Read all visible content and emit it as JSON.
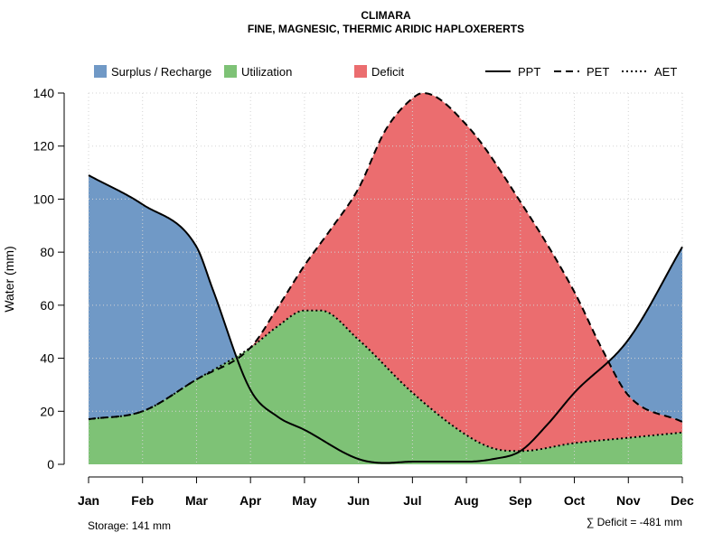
{
  "chart_data": {
    "type": "area",
    "title": "CLIMARA",
    "subtitle": "FINE, MAGNESIC, THERMIC ARIDIC HAPLOXERERTS",
    "ylabel": "Water (mm)",
    "xlabel": "",
    "ylim": [
      0,
      140
    ],
    "yticks": [
      0,
      20,
      40,
      60,
      80,
      100,
      120,
      140
    ],
    "categories": [
      "Jan",
      "Feb",
      "Mar",
      "Apr",
      "May",
      "Jun",
      "Jul",
      "Aug",
      "Sep",
      "Oct",
      "Nov",
      "Dec"
    ],
    "grid": true,
    "legend_position": "top",
    "series": [
      {
        "name": "PPT",
        "line_style": "solid",
        "x": [
          0,
          1,
          2,
          2.3,
          3,
          3.5,
          4,
          5,
          5.5,
          6,
          7,
          7.5,
          8,
          8.5,
          9,
          10,
          11
        ],
        "values": [
          109,
          98,
          82,
          66,
          28,
          18,
          13,
          2,
          0.5,
          1,
          1,
          2,
          5,
          15,
          27,
          47,
          82
        ]
      },
      {
        "name": "PET",
        "line_style": "dashed",
        "x": [
          0,
          1,
          2,
          3,
          3.5,
          4,
          4.5,
          5,
          5.5,
          6,
          6.2,
          7,
          8,
          9,
          9.5,
          10,
          11
        ],
        "values": [
          17,
          20,
          32,
          44,
          59,
          75,
          89,
          104,
          126,
          138,
          140,
          128,
          99,
          65,
          44,
          26,
          16
        ]
      },
      {
        "name": "AET",
        "line_style": "dotted",
        "x": [
          0,
          1,
          2,
          3,
          3.5,
          4,
          4.3,
          5,
          6,
          7,
          7.5,
          8,
          9,
          10,
          11
        ],
        "values": [
          17,
          20,
          32,
          44,
          52,
          58,
          58,
          47,
          27,
          11,
          6,
          5,
          8,
          10,
          12
        ]
      }
    ],
    "legend": {
      "fills": [
        {
          "label": "Surplus / Recharge",
          "color": "#7099C6"
        },
        {
          "label": "Utilization",
          "color": "#7EC276"
        },
        {
          "label": "Deficit",
          "color": "#EB6D6F"
        }
      ],
      "lines": [
        {
          "label": "PPT",
          "style": "solid"
        },
        {
          "label": "PET",
          "style": "dashed"
        },
        {
          "label": "AET",
          "style": "dotted"
        }
      ]
    },
    "annotations": {
      "storage": "Storage: 141 mm",
      "deficit": "∑ Deficit = -481 mm"
    }
  },
  "colors": {
    "surplus": "#7099C6",
    "utilization": "#7EC276",
    "deficit": "#EB6D6F",
    "line": "#000000",
    "grid": "#D3D3D3"
  }
}
